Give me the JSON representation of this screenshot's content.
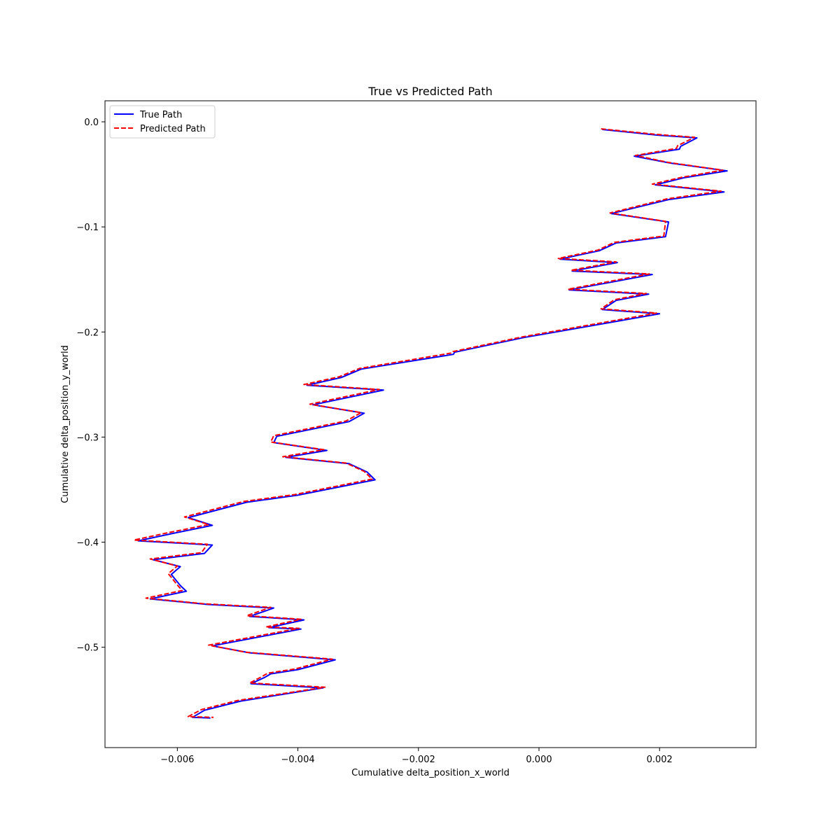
{
  "chart_data": {
    "type": "line",
    "title": "True vs Predicted Path",
    "xlabel": "Cumulative delta_position_x_world",
    "ylabel": "Cumulative delta_position_y_world",
    "xlim": [
      -0.0072,
      0.0036
    ],
    "ylim": [
      -0.5955,
      0.02
    ],
    "xticks": [
      -0.006,
      -0.004,
      -0.002,
      0.0,
      0.002
    ],
    "xtick_labels": [
      "−0.006",
      "−0.004",
      "−0.002",
      "0.000",
      "0.002"
    ],
    "yticks": [
      0.0,
      -0.1,
      -0.2,
      -0.3,
      -0.4,
      -0.5
    ],
    "ytick_labels": [
      "0.0",
      "−0.1",
      "−0.2",
      "−0.3",
      "−0.4",
      "−0.5"
    ],
    "grid": false,
    "legend_position": "top-left",
    "series": [
      {
        "name": "True Path",
        "color": "#0000ff",
        "style": "solid",
        "points": [
          [
            0.00105,
            -0.0073
          ],
          [
            0.00197,
            -0.0127
          ],
          [
            0.00262,
            -0.0153
          ],
          [
            0.00235,
            -0.0233
          ],
          [
            0.00233,
            -0.026
          ],
          [
            0.00158,
            -0.0327
          ],
          [
            0.00218,
            -0.0393
          ],
          [
            0.00312,
            -0.0467
          ],
          [
            0.0024,
            -0.0533
          ],
          [
            0.00193,
            -0.06
          ],
          [
            0.00307,
            -0.0667
          ],
          [
            0.00215,
            -0.074
          ],
          [
            0.0012,
            -0.0873
          ],
          [
            0.00215,
            -0.0953
          ],
          [
            0.0021,
            -0.1093
          ],
          [
            0.00128,
            -0.1153
          ],
          [
            0.001,
            -0.1227
          ],
          [
            0.00035,
            -0.1307
          ],
          [
            0.0013,
            -0.134
          ],
          [
            0.00055,
            -0.142
          ],
          [
            0.00188,
            -0.1453
          ],
          [
            0.0005,
            -0.16
          ],
          [
            0.00182,
            -0.164
          ],
          [
            0.00128,
            -0.17
          ],
          [
            0.00105,
            -0.1787
          ],
          [
            0.002,
            -0.1827
          ],
          [
            -0.00025,
            -0.2053
          ],
          [
            -0.0014,
            -0.2193
          ],
          [
            -0.00142,
            -0.2213
          ],
          [
            -0.00295,
            -0.2353
          ],
          [
            -0.00328,
            -0.2433
          ],
          [
            -0.00385,
            -0.2507
          ],
          [
            -0.00258,
            -0.2553
          ],
          [
            -0.00375,
            -0.2693
          ],
          [
            -0.0029,
            -0.2773
          ],
          [
            -0.00315,
            -0.2853
          ],
          [
            -0.00435,
            -0.2993
          ],
          [
            -0.0044,
            -0.3053
          ],
          [
            -0.00352,
            -0.3127
          ],
          [
            -0.0042,
            -0.3193
          ],
          [
            -0.00315,
            -0.3253
          ],
          [
            -0.00285,
            -0.3333
          ],
          [
            -0.00272,
            -0.3407
          ],
          [
            -0.004,
            -0.3553
          ],
          [
            -0.00485,
            -0.362
          ],
          [
            -0.00582,
            -0.3767
          ],
          [
            -0.00542,
            -0.384
          ],
          [
            -0.0061,
            -0.392
          ],
          [
            -0.00665,
            -0.3987
          ],
          [
            -0.00542,
            -0.4027
          ],
          [
            -0.00555,
            -0.4107
          ],
          [
            -0.0064,
            -0.4167
          ],
          [
            -0.00595,
            -0.4233
          ],
          [
            -0.0061,
            -0.4307
          ],
          [
            -0.00595,
            -0.4413
          ],
          [
            -0.00585,
            -0.4467
          ],
          [
            -0.00645,
            -0.454
          ],
          [
            -0.0055,
            -0.4593
          ],
          [
            -0.0044,
            -0.4627
          ],
          [
            -0.0048,
            -0.4707
          ],
          [
            -0.0039,
            -0.474
          ],
          [
            -0.00448,
            -0.4813
          ],
          [
            -0.00395,
            -0.4827
          ],
          [
            -0.00542,
            -0.4987
          ],
          [
            -0.0048,
            -0.5053
          ],
          [
            -0.00338,
            -0.512
          ],
          [
            -0.004,
            -0.5213
          ],
          [
            -0.00445,
            -0.5253
          ],
          [
            -0.00455,
            -0.5287
          ],
          [
            -0.00478,
            -0.5347
          ],
          [
            -0.00358,
            -0.5387
          ],
          [
            -0.00495,
            -0.5513
          ],
          [
            -0.00555,
            -0.56
          ],
          [
            -0.00575,
            -0.5667
          ],
          [
            -0.00545,
            -0.5673
          ]
        ]
      },
      {
        "name": "Predicted Path",
        "color": "#ff0000",
        "style": "dashed",
        "points": [
          [
            0.00103,
            -0.0067
          ],
          [
            0.00195,
            -0.012
          ],
          [
            0.00258,
            -0.0147
          ],
          [
            0.0023,
            -0.0227
          ],
          [
            0.00228,
            -0.0253
          ],
          [
            0.0016,
            -0.032
          ],
          [
            0.00215,
            -0.0387
          ],
          [
            0.00305,
            -0.046
          ],
          [
            0.00238,
            -0.0527
          ],
          [
            0.00188,
            -0.0593
          ],
          [
            0.00302,
            -0.066
          ],
          [
            0.00212,
            -0.0733
          ],
          [
            0.00118,
            -0.0867
          ],
          [
            0.0021,
            -0.0947
          ],
          [
            0.00207,
            -0.1087
          ],
          [
            0.00125,
            -0.1147
          ],
          [
            0.00098,
            -0.122
          ],
          [
            0.00032,
            -0.13
          ],
          [
            0.00128,
            -0.1333
          ],
          [
            0.00053,
            -0.1413
          ],
          [
            0.00183,
            -0.1447
          ],
          [
            0.00048,
            -0.1593
          ],
          [
            0.00178,
            -0.1633
          ],
          [
            0.00125,
            -0.1693
          ],
          [
            0.00103,
            -0.178
          ],
          [
            0.00195,
            -0.182
          ],
          [
            -0.00028,
            -0.2047
          ],
          [
            -0.00143,
            -0.2187
          ],
          [
            -0.00145,
            -0.22
          ],
          [
            -0.00298,
            -0.2347
          ],
          [
            -0.00332,
            -0.2427
          ],
          [
            -0.0039,
            -0.25
          ],
          [
            -0.00265,
            -0.2547
          ],
          [
            -0.0038,
            -0.2687
          ],
          [
            -0.00295,
            -0.2767
          ],
          [
            -0.0032,
            -0.2847
          ],
          [
            -0.0044,
            -0.2987
          ],
          [
            -0.00445,
            -0.3047
          ],
          [
            -0.00357,
            -0.312
          ],
          [
            -0.00425,
            -0.3187
          ],
          [
            -0.0032,
            -0.3247
          ],
          [
            -0.0029,
            -0.3327
          ],
          [
            -0.00277,
            -0.34
          ],
          [
            -0.00405,
            -0.3547
          ],
          [
            -0.0049,
            -0.3613
          ],
          [
            -0.00588,
            -0.376
          ],
          [
            -0.00548,
            -0.3833
          ],
          [
            -0.00618,
            -0.3913
          ],
          [
            -0.00672,
            -0.398
          ],
          [
            -0.0055,
            -0.402
          ],
          [
            -0.0056,
            -0.41
          ],
          [
            -0.00645,
            -0.416
          ],
          [
            -0.006,
            -0.4227
          ],
          [
            -0.00615,
            -0.43
          ],
          [
            -0.006,
            -0.4407
          ],
          [
            -0.00592,
            -0.446
          ],
          [
            -0.00652,
            -0.4533
          ],
          [
            -0.00555,
            -0.4587
          ],
          [
            -0.00445,
            -0.462
          ],
          [
            -0.00485,
            -0.47
          ],
          [
            -0.00395,
            -0.4733
          ],
          [
            -0.00453,
            -0.4807
          ],
          [
            -0.00398,
            -0.482
          ],
          [
            -0.00548,
            -0.498
          ],
          [
            -0.00487,
            -0.5047
          ],
          [
            -0.00343,
            -0.5113
          ],
          [
            -0.00405,
            -0.5207
          ],
          [
            -0.0045,
            -0.5247
          ],
          [
            -0.0046,
            -0.528
          ],
          [
            -0.0048,
            -0.534
          ],
          [
            -0.00355,
            -0.538
          ],
          [
            -0.005,
            -0.5507
          ],
          [
            -0.0056,
            -0.5593
          ],
          [
            -0.00582,
            -0.566
          ],
          [
            -0.0054,
            -0.5667
          ]
        ]
      }
    ]
  }
}
